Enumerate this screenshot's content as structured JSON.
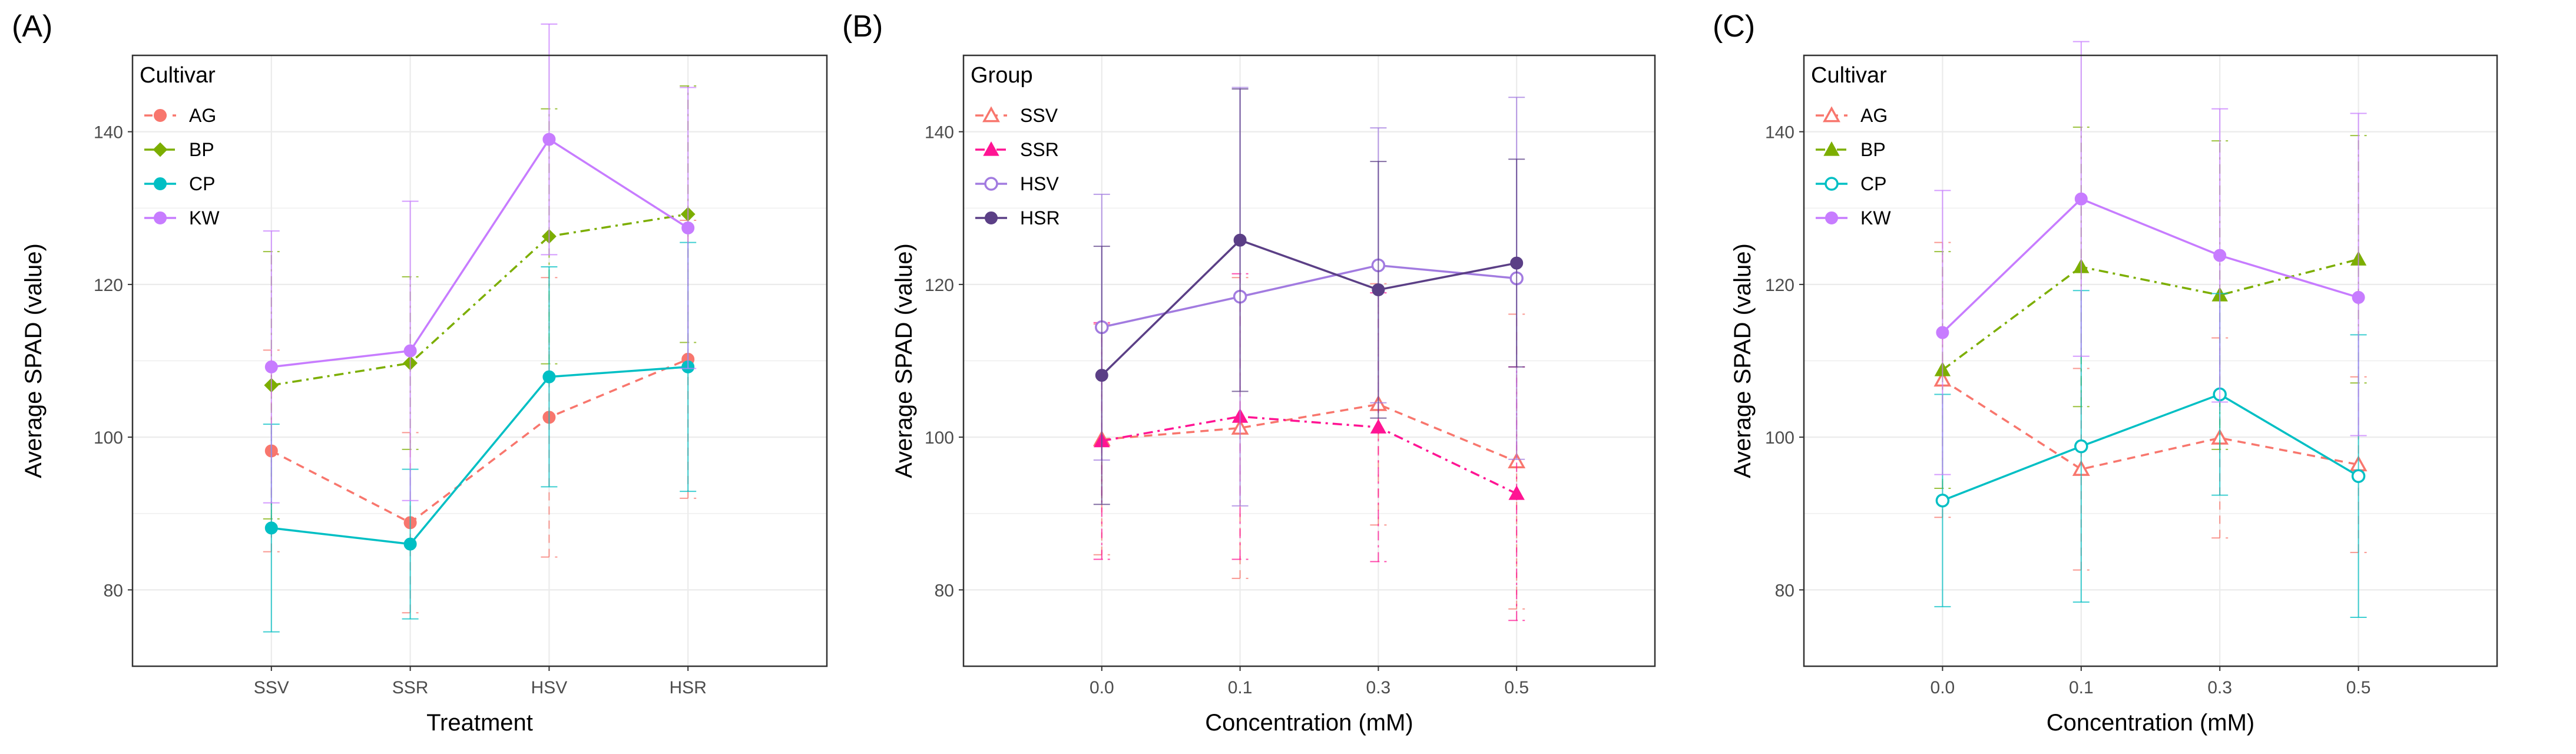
{
  "chart_data": [
    {
      "panel_label": "(A)",
      "type": "line",
      "xlabel": "Treatment",
      "ylabel": "Average SPAD (value)",
      "categories": [
        "SSV",
        "SSR",
        "HSV",
        "HSR"
      ],
      "ylim": [
        70,
        150
      ],
      "yticks": [
        80,
        100,
        120,
        140
      ],
      "grid": true,
      "legend": {
        "title": "Cultivar",
        "position": "top-left"
      },
      "series": [
        {
          "name": "AG",
          "color": "#f8766d",
          "marker": "circle",
          "filled": true,
          "dash": "dashed",
          "values": [
            98.2,
            88.8,
            102.6,
            110.2
          ],
          "err_low": [
            85.0,
            77.0,
            84.3,
            92.0
          ],
          "err_high": [
            111.4,
            100.6,
            120.9,
            128.4
          ]
        },
        {
          "name": "BP",
          "color": "#7cae00",
          "marker": "diamond",
          "filled": true,
          "dash": "dashdot",
          "values": [
            106.8,
            109.7,
            126.3,
            129.2
          ],
          "err_low": [
            89.3,
            98.4,
            109.6,
            112.4
          ],
          "err_high": [
            124.3,
            121.0,
            143.0,
            146.0
          ]
        },
        {
          "name": "CP",
          "color": "#00bfc4",
          "marker": "circle",
          "filled": true,
          "dash": "solid",
          "values": [
            88.1,
            86.0,
            107.9,
            109.2
          ],
          "err_low": [
            74.5,
            76.2,
            93.5,
            92.9
          ],
          "err_high": [
            101.7,
            95.8,
            122.3,
            125.5
          ]
        },
        {
          "name": "KW",
          "color": "#c77cff",
          "marker": "circle",
          "filled": true,
          "dash": "solid",
          "values": [
            109.2,
            111.3,
            139.0,
            127.4
          ],
          "err_low": [
            91.4,
            91.7,
            123.9,
            109.0
          ],
          "err_high": [
            127.0,
            130.9,
            154.1,
            145.8
          ]
        }
      ]
    },
    {
      "panel_label": "(B)",
      "type": "line",
      "xlabel": "Concentration (mM)",
      "ylabel": "Average SPAD (value)",
      "categories": [
        "0.0",
        "0.1",
        "0.3",
        "0.5"
      ],
      "ylim": [
        70,
        150
      ],
      "yticks": [
        80,
        100,
        120,
        140
      ],
      "grid": true,
      "legend": {
        "title": "Group",
        "position": "top-left"
      },
      "series": [
        {
          "name": "SSV",
          "color": "#f8766d",
          "marker": "triangle",
          "filled": false,
          "dash": "dashed",
          "values": [
            99.7,
            101.2,
            104.3,
            96.8
          ],
          "err_low": [
            84.6,
            81.5,
            88.5,
            77.5
          ],
          "err_high": [
            114.8,
            120.9,
            120.1,
            116.1
          ]
        },
        {
          "name": "SSR",
          "color": "#ff1493",
          "marker": "triangle",
          "filled": true,
          "dash": "dashdot",
          "values": [
            99.5,
            102.7,
            101.3,
            92.6
          ],
          "err_low": [
            84.0,
            84.0,
            83.7,
            76.0
          ],
          "err_high": [
            115.0,
            121.4,
            118.9,
            109.2
          ]
        },
        {
          "name": "HSV",
          "color": "#a27be0",
          "marker": "circle",
          "filled": false,
          "dash": "solid",
          "values": [
            114.4,
            118.4,
            122.5,
            120.8
          ],
          "err_low": [
            97.0,
            91.0,
            104.5,
            97.1
          ],
          "err_high": [
            131.8,
            145.8,
            140.5,
            144.5
          ]
        },
        {
          "name": "HSR",
          "color": "#5b3f86",
          "marker": "circle",
          "filled": true,
          "dash": "solid",
          "values": [
            108.1,
            125.8,
            119.3,
            122.8
          ],
          "err_low": [
            91.2,
            106.0,
            102.5,
            109.2
          ],
          "err_high": [
            125.0,
            145.6,
            136.1,
            136.4
          ]
        }
      ]
    },
    {
      "panel_label": "(C)",
      "type": "line",
      "xlabel": "Concentration (mM)",
      "ylabel": "Average SPAD (value)",
      "categories": [
        "0.0",
        "0.1",
        "0.3",
        "0.5"
      ],
      "ylim": [
        70,
        150
      ],
      "yticks": [
        80,
        100,
        120,
        140
      ],
      "grid": true,
      "legend": {
        "title": "Cultivar",
        "position": "top-left"
      },
      "series": [
        {
          "name": "AG",
          "color": "#f8766d",
          "marker": "triangle",
          "filled": false,
          "dash": "dashed",
          "values": [
            107.5,
            95.8,
            99.9,
            96.4
          ],
          "err_low": [
            89.5,
            82.6,
            86.8,
            84.9
          ],
          "err_high": [
            125.5,
            109.0,
            113.0,
            107.9
          ]
        },
        {
          "name": "BP",
          "color": "#7cae00",
          "marker": "triangle",
          "filled": true,
          "dash": "dashdot",
          "values": [
            108.8,
            122.3,
            118.6,
            123.3
          ],
          "err_low": [
            93.3,
            104.0,
            98.4,
            107.1
          ],
          "err_high": [
            124.3,
            140.6,
            138.8,
            139.5
          ]
        },
        {
          "name": "CP",
          "color": "#00bfc4",
          "marker": "circle",
          "filled": false,
          "dash": "solid",
          "values": [
            91.7,
            98.8,
            105.6,
            94.9
          ],
          "err_low": [
            77.8,
            78.4,
            92.4,
            76.4
          ],
          "err_high": [
            105.6,
            119.2,
            118.8,
            113.4
          ]
        },
        {
          "name": "KW",
          "color": "#c77cff",
          "marker": "circle",
          "filled": true,
          "dash": "solid",
          "values": [
            113.7,
            131.2,
            123.8,
            118.3
          ],
          "err_low": [
            95.1,
            110.6,
            104.6,
            100.2
          ],
          "err_high": [
            132.3,
            151.8,
            143.0,
            142.4
          ]
        }
      ]
    }
  ]
}
